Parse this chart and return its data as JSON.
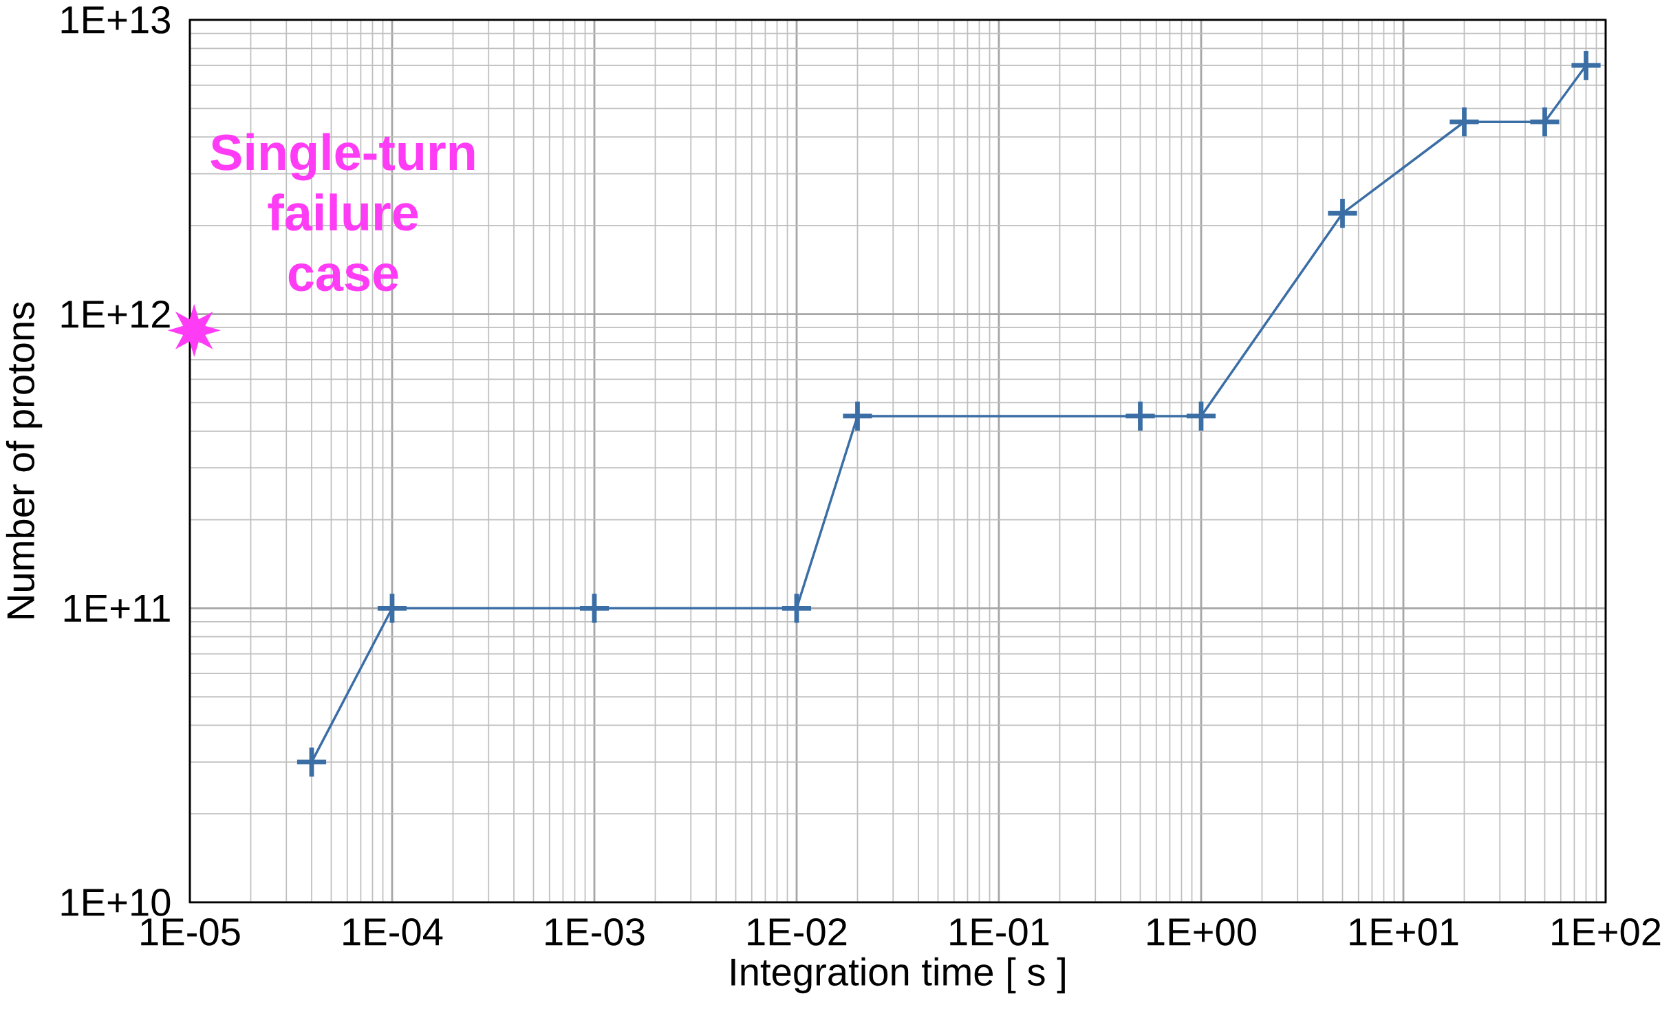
{
  "chart_data": {
    "type": "line",
    "xlabel": "Integration time [ s ]",
    "ylabel": "Number of protons",
    "log": "xy",
    "grid": true,
    "line_style": "solid",
    "xlim": [
      1e-05,
      100
    ],
    "ylim": [
      10000000000.0,
      10000000000000.0
    ],
    "xticks": [
      {
        "value": 1e-05,
        "label": "1E-05"
      },
      {
        "value": 0.0001,
        "label": "1E-04"
      },
      {
        "value": 0.001,
        "label": "1E-03"
      },
      {
        "value": 0.01,
        "label": "1E-02"
      },
      {
        "value": 0.1,
        "label": "1E-01"
      },
      {
        "value": 1,
        "label": "1E+00"
      },
      {
        "value": 10,
        "label": "1E+01"
      },
      {
        "value": 100,
        "label": "1E+02"
      }
    ],
    "yticks": [
      {
        "value": 10000000000.0,
        "label": "1E+10"
      },
      {
        "value": 100000000000.0,
        "label": "1E+11"
      },
      {
        "value": 1000000000000.0,
        "label": "1E+12"
      },
      {
        "value": 10000000000000.0,
        "label": "1E+13"
      }
    ],
    "series": [
      {
        "color": "#3a6ea5",
        "marker": "cross",
        "x": [
          4e-05,
          0.0001,
          0.001,
          0.01,
          0.02,
          0.5,
          1,
          5,
          20,
          50,
          80
        ],
        "values": [
          30000000000.0,
          100000000000.0,
          100000000000.0,
          100000000000.0,
          450000000000.0,
          450000000000.0,
          450000000000.0,
          2200000000000.0,
          4500000000000.0,
          4500000000000.0,
          7000000000000.0
        ]
      },
      {
        "type": "scatter",
        "name": "Single-turn failure case",
        "color": "#ff3cf5",
        "marker": "star",
        "x": [
          1.05e-05
        ],
        "values": [
          880000000000.0
        ]
      }
    ]
  }
}
